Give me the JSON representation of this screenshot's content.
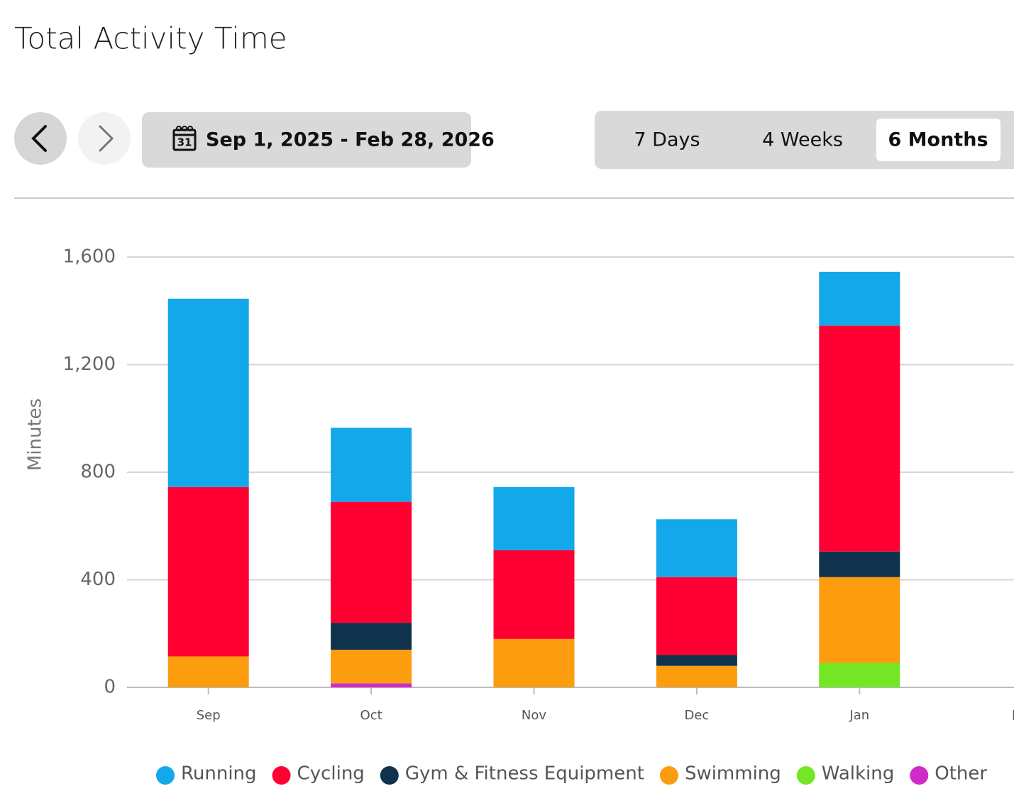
{
  "header": {
    "title": "Total Activity Time"
  },
  "controls": {
    "date_range": "Sep 1, 2025 - Feb 28, 2026",
    "calendar_day": "31",
    "tabs": [
      "7 Days",
      "4 Weeks",
      "6 Months"
    ],
    "active_tab_index": 2
  },
  "chart_data": {
    "type": "stacked-bar",
    "y_label": "Minutes",
    "categories": [
      "Sep",
      "Oct",
      "Nov",
      "Dec",
      "Jan"
    ],
    "series": [
      {
        "name": "Running",
        "color": "#12a8ea",
        "values": [
          700,
          275,
          235,
          215,
          200
        ]
      },
      {
        "name": "Cycling",
        "color": "#ff0033",
        "values": [
          630,
          450,
          330,
          290,
          840
        ]
      },
      {
        "name": "Gym & Fitness Equipment",
        "color": "#0f324d",
        "values": [
          0,
          100,
          0,
          40,
          95
        ]
      },
      {
        "name": "Swimming",
        "color": "#fb9d0f",
        "values": [
          115,
          125,
          180,
          80,
          320
        ]
      },
      {
        "name": "Walking",
        "color": "#74e623",
        "values": [
          0,
          0,
          0,
          0,
          90
        ]
      },
      {
        "name": "Other",
        "color": "#d02bc8",
        "values": [
          0,
          15,
          0,
          0,
          0
        ]
      }
    ],
    "ylim": [
      0,
      1600
    ],
    "yticks": [
      0,
      400,
      800,
      {
        "value": 1200,
        "label": "1,200"
      },
      {
        "value": 1600,
        "label": "1,600"
      }
    ],
    "grid": true,
    "legend": "bottom"
  }
}
